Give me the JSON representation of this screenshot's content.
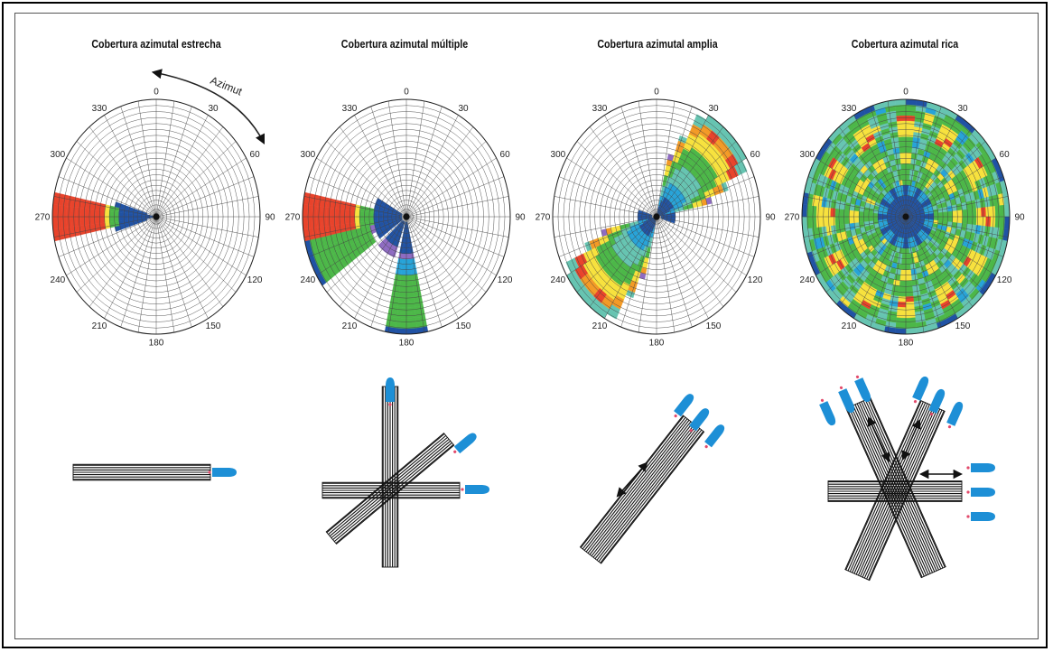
{
  "panels": [
    {
      "title": "Cobertura azimutal estrecha"
    },
    {
      "title": "Cobertura azimutal múltiple"
    },
    {
      "title": "Cobertura azimutal amplia"
    },
    {
      "title": "Cobertura azimutal rica"
    }
  ],
  "azimuth_arrow_label": "Azimut",
  "tick_labels": [
    "0",
    "30",
    "60",
    "90",
    "120",
    "150",
    "180",
    "210",
    "240",
    "270",
    "300",
    "330"
  ],
  "colors": {
    "red": "#e8432b",
    "orange": "#f39a26",
    "yellow": "#f7e13d",
    "green": "#4cb748",
    "teal": "#66c4b1",
    "cyan": "#27a3d8",
    "blue": "#2052a4",
    "purple": "#8e6bc2",
    "streamer": "#1d8fd6"
  }
}
